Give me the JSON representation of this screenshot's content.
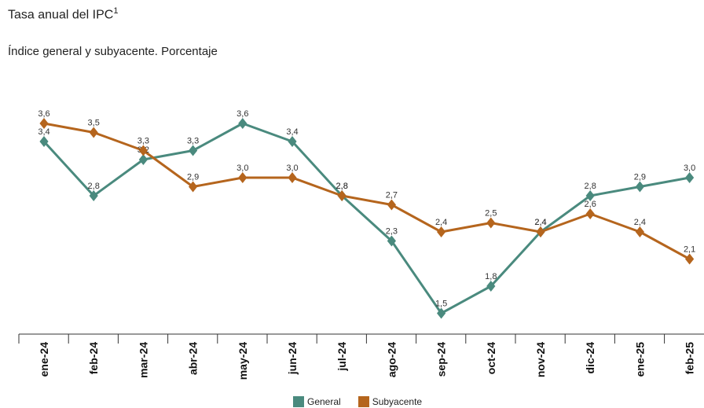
{
  "title": "Tasa anual del IPC",
  "title_superscript": "1",
  "subtitle": "Índice general y subyacente. Porcentaje",
  "chart_data": {
    "type": "line",
    "categories": [
      "ene-24",
      "feb-24",
      "mar-24",
      "abr-24",
      "may-24",
      "jun-24",
      "jul-24",
      "ago-24",
      "sep-24",
      "oct-24",
      "nov-24",
      "dic-24",
      "ene-25",
      "feb-25"
    ],
    "series": [
      {
        "name": "General",
        "color": "#4a8a7e",
        "values": [
          3.4,
          2.8,
          3.2,
          3.3,
          3.6,
          3.4,
          2.8,
          2.3,
          1.5,
          1.8,
          2.4,
          2.8,
          2.9,
          3.0
        ],
        "labels": [
          "3,4",
          "2,8",
          "3,2",
          "3,3",
          "3,6",
          "3,4",
          "2,8",
          "2,3",
          "1,5",
          "1,8",
          "2,4",
          "2,8",
          "2,9",
          "3,0"
        ]
      },
      {
        "name": "Subyacente",
        "color": "#b5651d",
        "values": [
          3.6,
          3.5,
          3.3,
          2.9,
          3.0,
          3.0,
          2.8,
          2.7,
          2.4,
          2.5,
          2.4,
          2.6,
          2.4,
          2.1
        ],
        "labels": [
          "3,6",
          "3,5",
          "3,3",
          "2,9",
          "3,0",
          "3,0",
          "2,8",
          "2,7",
          "2,4",
          "2,5",
          "2,4",
          "2,6",
          "2,4",
          "2,1"
        ]
      }
    ],
    "legend_position": "bottom-center",
    "grid": false
  }
}
